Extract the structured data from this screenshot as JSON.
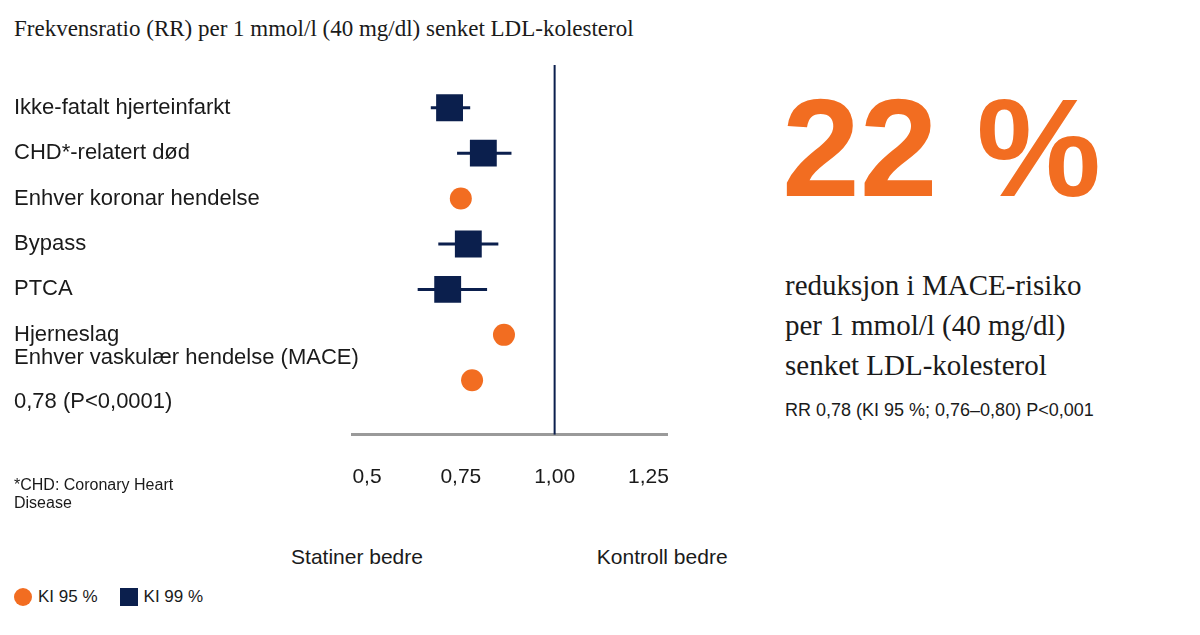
{
  "chart_data": {
    "type": "forest",
    "title": "Frekvensratio (RR) per 1 mmol/l (40 mg/dl) senket LDL-kolesterol",
    "categories": [
      "Ikke-fatalt hjerteinfarkt",
      "CHD*-relatert død",
      "Enhver koronar hendelse",
      "Bypass",
      "PTCA",
      "Hjerneslag",
      [
        "Enhver vaskulær hendelse (MACE)",
        "0,78 (P<0,0001)"
      ]
    ],
    "series": [
      {
        "name": "KI 95 %",
        "color": "#f26d21",
        "marker": "circle",
        "values": [
          null,
          null,
          0.75,
          null,
          null,
          0.865,
          0.78
        ],
        "ci_low": [
          null,
          null,
          null,
          null,
          null,
          null,
          0.76
        ],
        "ci_high": [
          null,
          null,
          null,
          null,
          null,
          null,
          0.8
        ]
      },
      {
        "name": "KI 99 %",
        "color": "#0b1f4d",
        "marker": "square",
        "values": [
          0.72,
          0.81,
          null,
          0.77,
          0.715,
          null,
          null
        ],
        "ci_low": [
          0.67,
          0.74,
          null,
          0.69,
          0.635,
          null,
          null
        ],
        "ci_high": [
          0.775,
          0.885,
          null,
          0.85,
          0.82,
          null,
          null
        ]
      }
    ],
    "xlim": [
      0.46,
      1.3
    ],
    "xticks": [
      {
        "value": 0.5,
        "label": "0,5"
      },
      {
        "value": 0.75,
        "label": "0,75"
      },
      {
        "value": 1,
        "label": "1,00"
      },
      {
        "value": 1.25,
        "label": "1,25"
      }
    ],
    "reference_line": 1,
    "grid": false,
    "legend": "bottom-left",
    "annotations": [
      "Statiner bedre",
      "Kontroll bedre"
    ],
    "footnote": "*CHD: Coronary Heart Disease",
    "callout": {
      "headline": "22 %",
      "text": [
        "reduksjon i MACE-risiko",
        "per 1 mmol/l (40 mg/dl)",
        "senket LDL-kolesterol"
      ],
      "detail": "RR 0,78 (KI 95 %; 0,76–0,80) P<0,001"
    }
  }
}
